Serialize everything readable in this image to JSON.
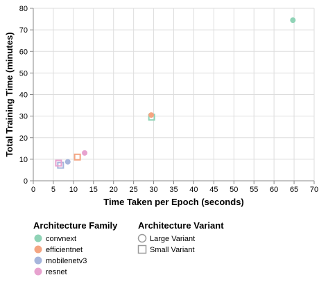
{
  "chart_data": {
    "type": "scatter",
    "xlabel": "Time Taken per Epoch (seconds)",
    "ylabel": "Total Training Time (minutes)",
    "xlim": [
      0,
      70
    ],
    "ylim": [
      0,
      80
    ],
    "x_ticks": [
      "0",
      "5",
      "10",
      "15",
      "20",
      "25",
      "30",
      "35",
      "40",
      "45",
      "50",
      "55",
      "60",
      "65",
      "70"
    ],
    "y_ticks": [
      "0",
      "10",
      "20",
      "30",
      "40",
      "50",
      "60",
      "70",
      "80"
    ],
    "grid": true,
    "legend_placement": "bottom-left",
    "color_legend": {
      "title": "Architecture Family",
      "items": [
        {
          "label": "convnext",
          "color": "#8fd3b6"
        },
        {
          "label": "efficientnet",
          "color": "#f4a582"
        },
        {
          "label": "mobilenetv3",
          "color": "#a6b5dc"
        },
        {
          "label": "resnet",
          "color": "#e7a2cf"
        }
      ]
    },
    "shape_legend": {
      "title": "Architecture Variant",
      "items": [
        {
          "label": "Large Variant",
          "shape": "circle"
        },
        {
          "label": "Small Variant",
          "shape": "square"
        }
      ]
    },
    "points": [
      {
        "family": "convnext",
        "variant": "Large Variant",
        "x": 64.7,
        "y": 74.5
      },
      {
        "family": "convnext",
        "variant": "Small Variant",
        "x": 29.5,
        "y": 29.5
      },
      {
        "family": "efficientnet",
        "variant": "Large Variant",
        "x": 29.4,
        "y": 30.5
      },
      {
        "family": "efficientnet",
        "variant": "Small Variant",
        "x": 11.0,
        "y": 11.0
      },
      {
        "family": "mobilenetv3",
        "variant": "Large Variant",
        "x": 8.6,
        "y": 8.8
      },
      {
        "family": "mobilenetv3",
        "variant": "Small Variant",
        "x": 6.8,
        "y": 7.2
      },
      {
        "family": "resnet",
        "variant": "Large Variant",
        "x": 12.8,
        "y": 12.9
      },
      {
        "family": "resnet",
        "variant": "Small Variant",
        "x": 6.3,
        "y": 8.2
      }
    ]
  }
}
